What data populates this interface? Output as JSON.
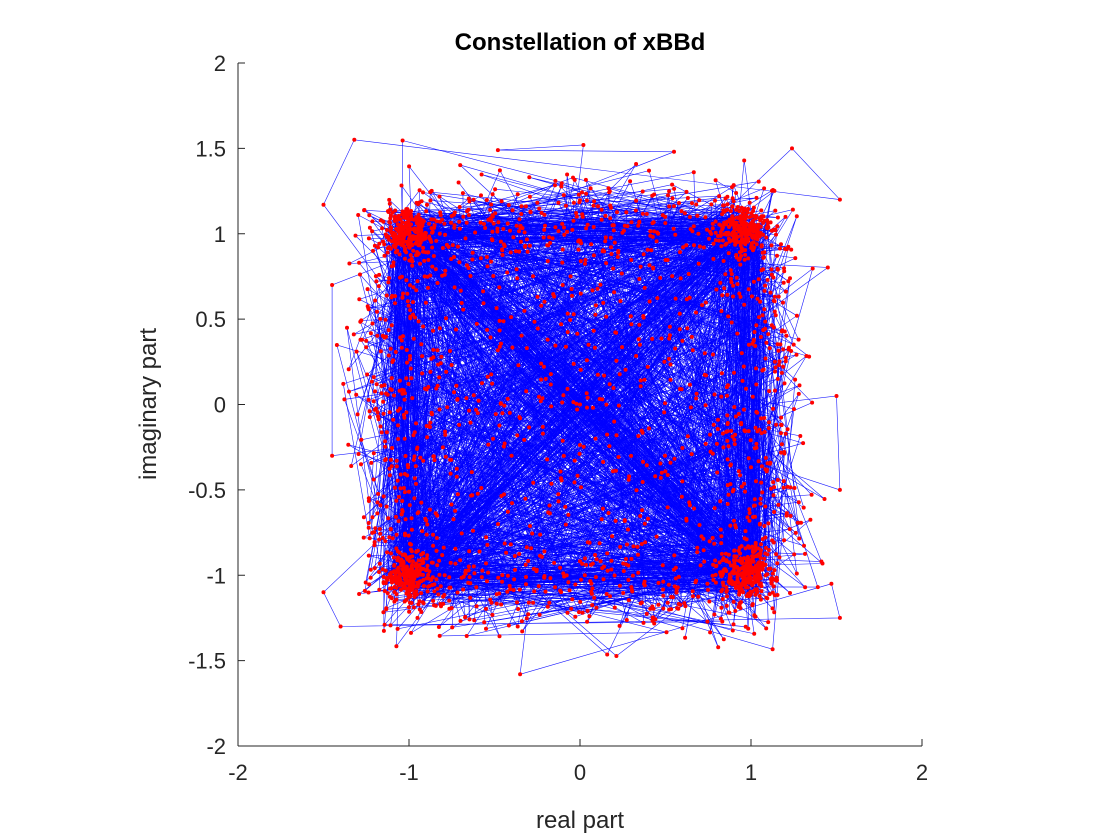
{
  "chart_data": {
    "type": "scatter",
    "title": "Constellation of xBBd",
    "xlabel": "real part",
    "ylabel": "imaginary part",
    "xlim": [
      -2,
      2
    ],
    "ylim": [
      -2,
      2
    ],
    "xticks": [
      -2,
      -1,
      0,
      1,
      2
    ],
    "yticks": [
      -2,
      -1.5,
      -1,
      -0.5,
      0,
      0.5,
      1,
      1.5,
      2
    ],
    "xtick_labels": [
      "-2",
      "-1",
      "0",
      "1",
      "2"
    ],
    "ytick_labels": [
      "-2",
      "-1.5",
      "-1",
      "-0.5",
      "0",
      "0.5",
      "1",
      "1.5",
      "2"
    ],
    "grid": false,
    "series": [
      {
        "style": "line+markers",
        "line_color": "#0000ff",
        "marker_color": "#ff0000",
        "description_of_distribution": "QPSK-like constellation with dense clusters near (±1, ±1), samples spread over roughly -1.5 to 1.5 on both axes",
        "clusters": [
          {
            "center": [
              -1.0,
              1.0
            ]
          },
          {
            "center": [
              0.97,
              1.02
            ]
          },
          {
            "center": [
              -1.0,
              -1.0
            ]
          },
          {
            "center": [
              0.97,
              -0.97
            ]
          }
        ],
        "extent": {
          "real": [
            -1.55,
            1.55
          ],
          "imag": [
            -1.6,
            1.55
          ]
        },
        "sample_points": [
          [
            -1.5,
            1.17
          ],
          [
            -1.32,
            1.55
          ],
          [
            1.52,
            1.2
          ],
          [
            1.24,
            1.5
          ],
          [
            -1.5,
            -1.1
          ],
          [
            -1.4,
            -1.3
          ],
          [
            1.52,
            -1.25
          ],
          [
            1.47,
            -1.05
          ],
          [
            -0.35,
            -1.58
          ],
          [
            0.02,
            1.52
          ],
          [
            -0.48,
            1.49
          ],
          [
            0.55,
            1.48
          ],
          [
            -1.45,
            0.7
          ],
          [
            -1.45,
            -0.3
          ],
          [
            1.5,
            0.05
          ],
          [
            1.52,
            -0.5
          ],
          [
            0.0,
            0.0
          ],
          [
            0.2,
            -0.1
          ],
          [
            -0.2,
            0.15
          ],
          [
            0.35,
            0.35
          ],
          [
            -0.4,
            -0.3
          ]
        ]
      }
    ]
  }
}
